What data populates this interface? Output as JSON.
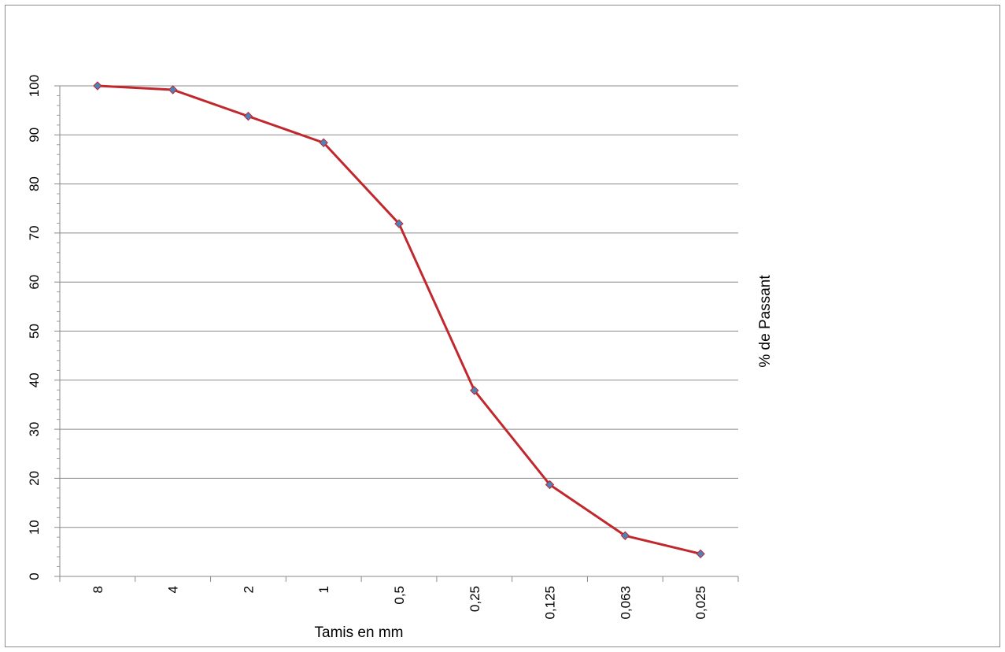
{
  "chart_data": {
    "type": "line",
    "xlabel": "Tamis en mm",
    "ylabel": "% de Passant",
    "categories": [
      "8",
      "4",
      "2",
      "1",
      "0,5",
      "0,25",
      "0,125",
      "0,063",
      "0,025"
    ],
    "series": [
      {
        "values": [
          100,
          99.2,
          93.8,
          88.4,
          71.9,
          37.9,
          18.7,
          8.3,
          4.6
        ],
        "color": "#c0282d",
        "marker_color": "#4f81bd",
        "marker": "diamond"
      }
    ],
    "ylim": [
      0,
      100
    ],
    "y_major_step": 10,
    "y_minor_step": 2,
    "grid": true,
    "legend": "none",
    "label_rotation": "text rotated 90 degrees (page viewed sideways)"
  }
}
